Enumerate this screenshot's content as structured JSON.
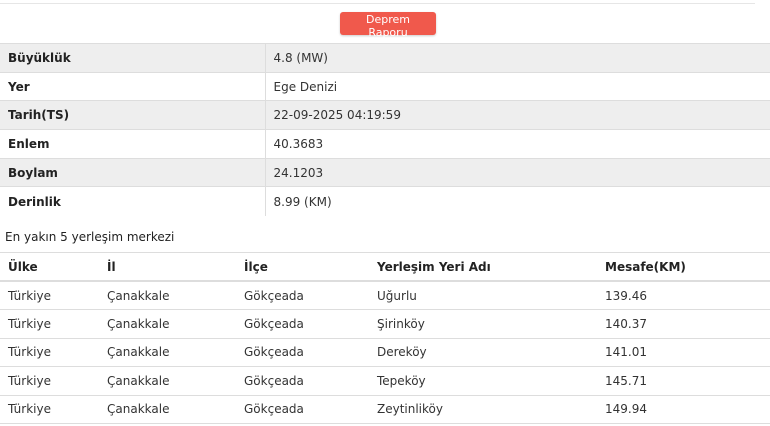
{
  "report_button": "Deprem Raporu",
  "info": [
    {
      "label": "Büyüklük",
      "value": "4.8 (MW)"
    },
    {
      "label": "Yer",
      "value": "Ege Denizi"
    },
    {
      "label": "Tarih(TS)",
      "value": "22-09-2025 04:19:59"
    },
    {
      "label": "Enlem",
      "value": "40.3683"
    },
    {
      "label": "Boylam",
      "value": "24.1203"
    },
    {
      "label": "Derinlik",
      "value": "8.99 (KM)"
    }
  ],
  "nearest": {
    "title": "En yakın 5 yerleşim merkezi",
    "headers": [
      "Ülke",
      "İl",
      "İlçe",
      "Yerleşim Yeri Adı",
      "Mesafe(KM)"
    ],
    "rows": [
      [
        "Türkiye",
        "Çanakkale",
        "Gökçeada",
        "Uğurlu",
        "139.46"
      ],
      [
        "Türkiye",
        "Çanakkale",
        "Gökçeada",
        "Şirinköy",
        "140.37"
      ],
      [
        "Türkiye",
        "Çanakkale",
        "Gökçeada",
        "Dereköy",
        "141.01"
      ],
      [
        "Türkiye",
        "Çanakkale",
        "Gökçeada",
        "Tepeköy",
        "145.71"
      ],
      [
        "Türkiye",
        "Çanakkale",
        "Gökçeada",
        "Zeytinliköy",
        "149.94"
      ]
    ]
  }
}
